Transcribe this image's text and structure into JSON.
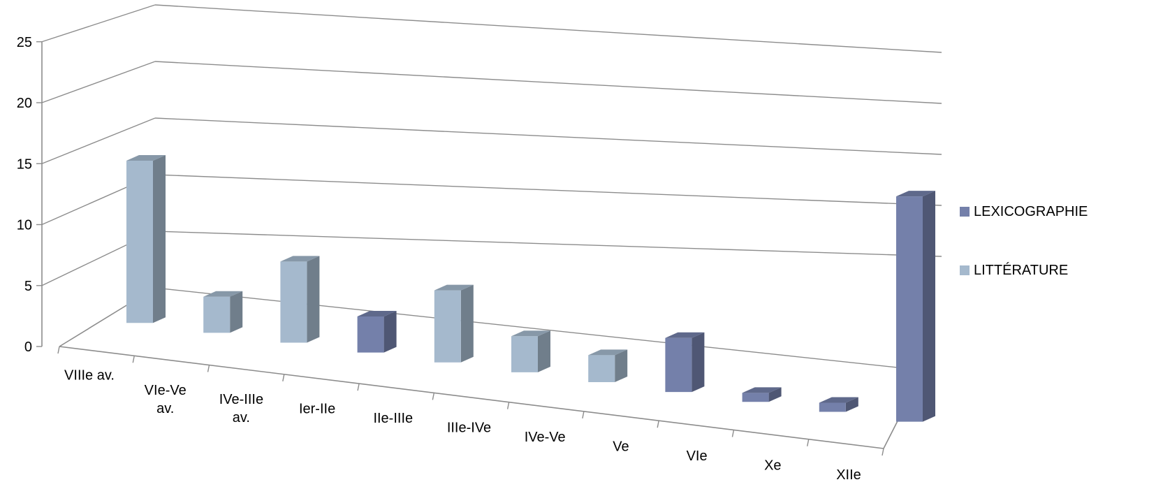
{
  "chart_data": {
    "type": "bar",
    "style": "3d-column",
    "categories": [
      [
        "VIIIe av."
      ],
      [
        "VIe-Ve",
        "av."
      ],
      [
        "IVe-IIIe",
        "av."
      ],
      [
        "Ier-IIe"
      ],
      [
        "IIe-IIIe"
      ],
      [
        "IIIe-IVe"
      ],
      [
        "IVe-Ve"
      ],
      [
        "Ve"
      ],
      [
        "VIe"
      ],
      [
        "Xe"
      ],
      [
        "XIIe"
      ]
    ],
    "series": [
      {
        "name": "LEXICOGRAPHIE",
        "color": "#7480AA",
        "values": [
          0,
          0,
          0,
          4,
          0,
          0,
          0,
          6,
          1,
          1,
          25
        ]
      },
      {
        "name": "LITTÉRATURE",
        "color": "#A5B9CD",
        "values": [
          18,
          4,
          9,
          0,
          8,
          4,
          3,
          0,
          0,
          0,
          0
        ]
      }
    ],
    "y_ticks": [
      "0",
      "5",
      "10",
      "15",
      "20",
      "25"
    ],
    "ylim": [
      0,
      25
    ],
    "grid": true,
    "legend_position": "right"
  }
}
